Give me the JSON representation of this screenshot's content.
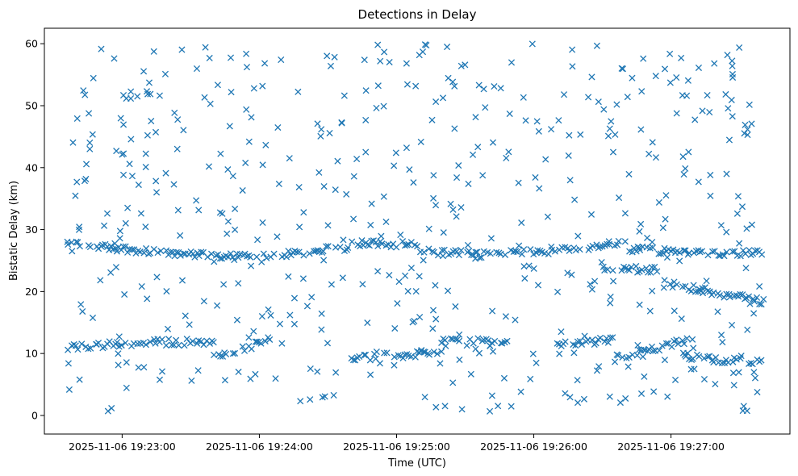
{
  "chart_data": {
    "type": "scatter",
    "title": "Detections in Delay",
    "xlabel": "Time (UTC)",
    "ylabel": "Bistatic Delay (km)",
    "marker": "x",
    "color": "#1f77b4",
    "grid": false,
    "legend": "none",
    "x_ticks": [
      "2025-11-06 19:23:00",
      "2025-11-06 19:24:00",
      "2025-11-06 19:25:00",
      "2025-11-06 19:26:00",
      "2025-11-06 19:27:00"
    ],
    "x_start": "2025-11-06 19:22:36",
    "x_end": "2025-11-06 19:27:40",
    "xlim": [
      "2025-11-06 19:22:26",
      "2025-11-06 19:27:52"
    ],
    "y_ticks": [
      0,
      10,
      20,
      30,
      40,
      50,
      60
    ],
    "ylim": [
      -3,
      62.5
    ],
    "series": [
      {
        "tracks": [
          {
            "t0": "19:22:36",
            "t1": "19:23:20",
            "y0": 27.8,
            "y1": 26.2
          },
          {
            "t0": "19:23:20",
            "t1": "19:24:00",
            "y0": 26.2,
            "y1": 25.4
          },
          {
            "t0": "19:24:00",
            "t1": "19:24:40",
            "y0": 25.6,
            "y1": 27.2
          },
          {
            "t0": "19:24:40",
            "t1": "19:25:10",
            "y0": 27.9,
            "y1": 27.5
          },
          {
            "t0": "19:25:10",
            "t1": "19:25:40",
            "y0": 26.5,
            "y1": 25.9
          },
          {
            "t0": "19:25:40",
            "t1": "19:26:10",
            "y0": 26.2,
            "y1": 26.5
          },
          {
            "t0": "19:26:10",
            "t1": "19:26:40",
            "y0": 26.5,
            "y1": 27.8
          },
          {
            "t0": "19:26:40",
            "t1": "19:27:40",
            "y0": 26.8,
            "y1": 26.1
          },
          {
            "t0": "19:26:30",
            "t1": "19:26:55",
            "y0": 23.8,
            "y1": 23.5
          },
          {
            "t0": "19:26:55",
            "t1": "19:27:40",
            "y0": 21.5,
            "y1": 18.4
          },
          {
            "t0": "19:22:36",
            "t1": "19:23:10",
            "y0": 11.0,
            "y1": 11.8
          },
          {
            "t0": "19:23:10",
            "t1": "19:23:40",
            "y0": 11.8,
            "y1": 11.9
          },
          {
            "t0": "19:23:40",
            "t1": "19:24:05",
            "y0": 9.3,
            "y1": 12.3
          },
          {
            "t0": "19:24:40",
            "t1": "19:25:20",
            "y0": 9.3,
            "y1": 10.0
          },
          {
            "t0": "19:25:20",
            "t1": "19:25:50",
            "y0": 12.2,
            "y1": 11.6
          },
          {
            "t0": "19:26:10",
            "t1": "19:26:35",
            "y0": 11.4,
            "y1": 12.2
          },
          {
            "t0": "19:26:35",
            "t1": "19:27:10",
            "y0": 9.2,
            "y1": 12.4
          },
          {
            "t0": "19:27:05",
            "t1": "19:27:40",
            "y0": 9.6,
            "y1": 8.4
          }
        ],
        "scatter_range": [
          0.5,
          60
        ]
      }
    ]
  }
}
